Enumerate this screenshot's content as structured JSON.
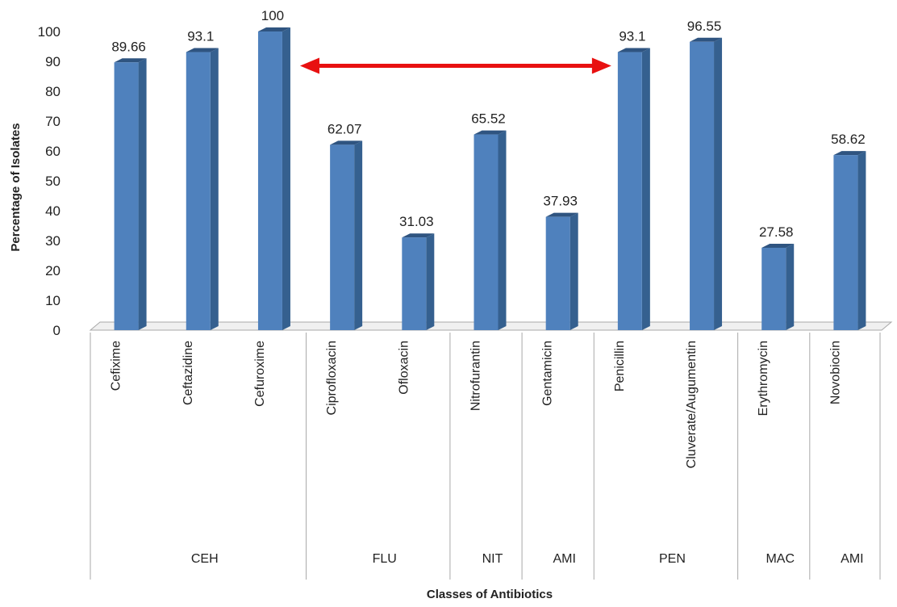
{
  "chart_data": {
    "type": "bar",
    "title": "",
    "xlabel": "Classes of Antibiotics",
    "ylabel": "Percentage of Isolates",
    "ylim": [
      0,
      100
    ],
    "yticks": [
      0,
      10,
      20,
      30,
      40,
      50,
      60,
      70,
      80,
      90,
      100
    ],
    "grid": false,
    "legend": "none",
    "style": "3d",
    "colors": {
      "bar": "#4f81bd",
      "bar_side": "#35608f",
      "bar_top": "#2f5480",
      "arrow": "#e81010"
    },
    "groups": [
      {
        "name": "CEH",
        "categories": [
          "Cefixime",
          "Ceftazidine",
          "Cefuroxime"
        ],
        "values": [
          89.66,
          93.1,
          100
        ],
        "labels": [
          "89.66",
          "93.1",
          "100"
        ]
      },
      {
        "name": "FLU",
        "categories": [
          "Ciprofloxacin",
          "Ofloxacin"
        ],
        "values": [
          62.07,
          31.03
        ],
        "labels": [
          "62.07",
          "31.03"
        ]
      },
      {
        "name": "NIT",
        "categories": [
          "Nitrofurantin"
        ],
        "values": [
          65.52
        ],
        "labels": [
          "65.52"
        ]
      },
      {
        "name": "AMI",
        "categories": [
          "Gentamicin"
        ],
        "values": [
          37.93
        ],
        "labels": [
          "37.93"
        ]
      },
      {
        "name": "PEN",
        "categories": [
          "Penicillin",
          "Cluverate/Augumentin"
        ],
        "values": [
          93.1,
          96.55
        ],
        "labels": [
          "93.1",
          "96.55"
        ]
      },
      {
        "name": "MAC",
        "categories": [
          "Erythromycin"
        ],
        "values": [
          27.58
        ],
        "labels": [
          "27.58"
        ]
      },
      {
        "name": "AMI",
        "categories": [
          "Novobiocin"
        ],
        "values": [
          58.62
        ],
        "labels": [
          "58.62"
        ]
      }
    ],
    "annotations": [
      {
        "type": "double-arrow",
        "from_category": "Cefuroxime",
        "to_category": "Penicillin",
        "level": 88.5
      }
    ]
  }
}
